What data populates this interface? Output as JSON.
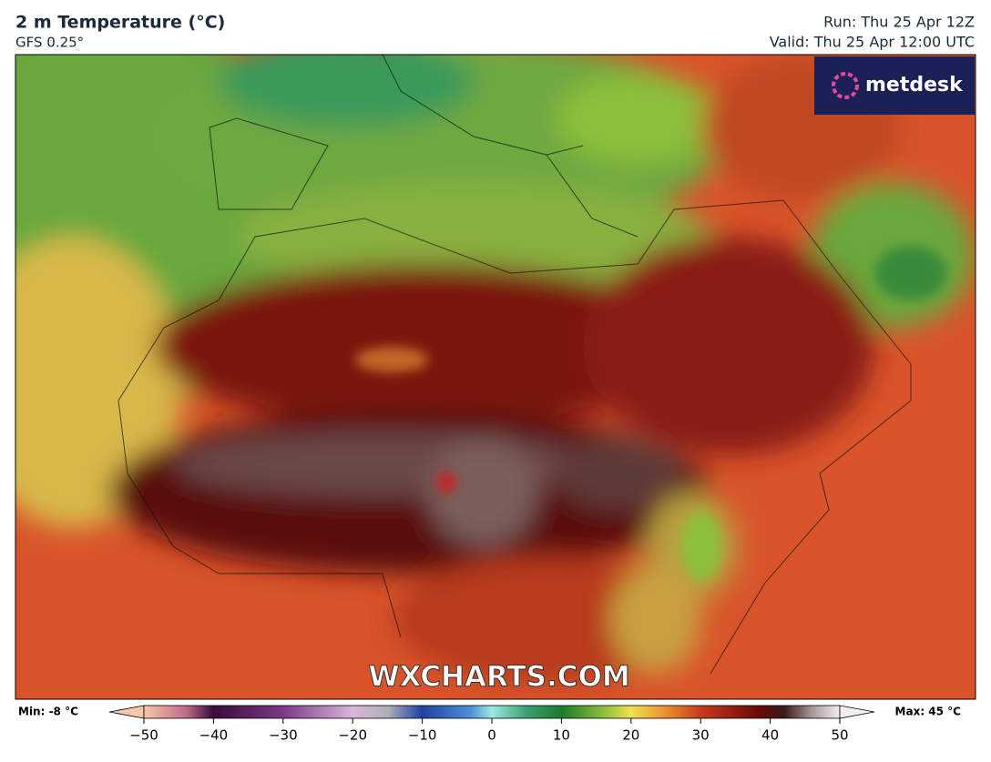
{
  "header": {
    "title": "2 m Temperature (°C)",
    "model": "GFS 0.25°",
    "run": "Run: Thu 25 Apr 12Z",
    "valid": "Valid: Thu 25 Apr 12:00 UTC"
  },
  "logo": "metdesk",
  "watermark": "WXCHARTS.COM",
  "colorbar": {
    "min_label": "Min: -8 °C",
    "max_label": "Max: 45 °C",
    "range": [
      -50,
      50
    ],
    "ticks": [
      {
        "value": -50,
        "label": "−50"
      },
      {
        "value": -40,
        "label": "−40"
      },
      {
        "value": -30,
        "label": "−30"
      },
      {
        "value": -20,
        "label": "−20"
      },
      {
        "value": -10,
        "label": "−10"
      },
      0,
      10,
      20,
      30,
      40,
      50
    ]
  }
}
